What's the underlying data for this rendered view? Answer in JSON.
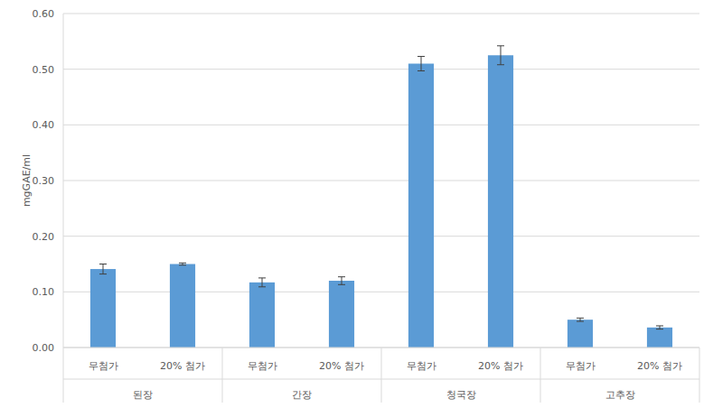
{
  "chart_data": {
    "type": "bar",
    "y_label": "mgGAE/ml",
    "categories": [
      "무첨가",
      "20% 첨가",
      "무첨가",
      "20% 첨가",
      "무첨가",
      "20% 첨가",
      "무첨가",
      "20% 첨가"
    ],
    "category_groups": [
      "된장",
      "간장",
      "청국장",
      "고추장"
    ],
    "values": [
      0.141,
      0.15,
      0.117,
      0.12,
      0.51,
      0.525,
      0.05,
      0.036
    ],
    "errors": [
      0.009,
      0.002,
      0.008,
      0.007,
      0.013,
      0.017,
      0.003,
      0.003
    ],
    "color": "#5b9bd5",
    "ylim": [
      0,
      0.6
    ],
    "yticks": [
      {
        "value": 0,
        "label": "0.00"
      },
      {
        "value": 0.1,
        "label": "0.10"
      },
      {
        "value": 0.2,
        "label": "0.20"
      },
      {
        "value": 0.3,
        "label": "0.30"
      },
      {
        "value": 0.4,
        "label": "0.40"
      },
      {
        "value": 0.5,
        "label": "0.50"
      },
      {
        "value": 0.6,
        "label": "0.60"
      }
    ],
    "grid": true
  }
}
